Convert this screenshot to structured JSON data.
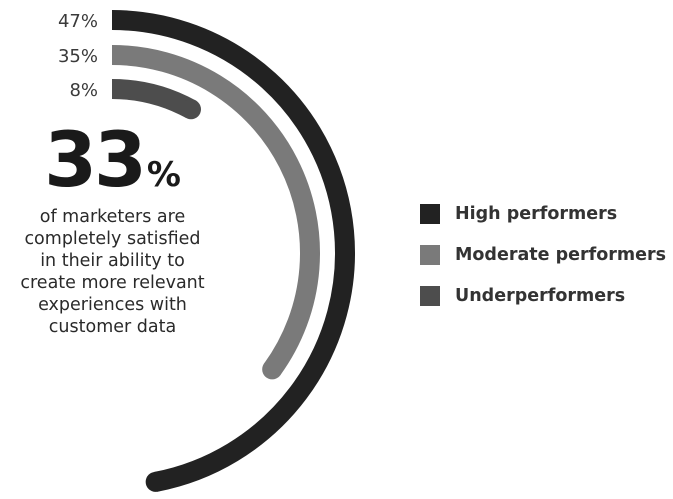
{
  "chart_data": {
    "type": "radial-bar",
    "series": [
      {
        "name": "High performers",
        "value": 47,
        "label": "47%",
        "color": "#222222"
      },
      {
        "name": "Moderate performers",
        "value": 35,
        "label": "35%",
        "color": "#7a7a7a"
      },
      {
        "name": "Underperformers",
        "value": 8,
        "label": "8%",
        "color": "#4d4d4d"
      }
    ],
    "unit": "%",
    "headline": {
      "value": "33",
      "suffix": "%"
    },
    "caption_lines": [
      "of marketers are",
      "completely satisfied",
      "in their ability to",
      "create more relevant",
      "experiences with",
      "customer data"
    ],
    "legend_placement": "right"
  }
}
